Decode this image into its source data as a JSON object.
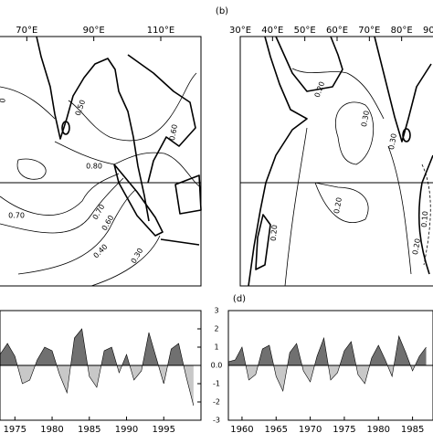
{
  "chart_data": [
    {
      "type": "map",
      "xlim": [
        62,
        122
      ],
      "xticks": [
        {
          "value": 70,
          "label": "70°E"
        },
        {
          "value": 90,
          "label": "90°E"
        },
        {
          "value": 110,
          "label": "110°E"
        }
      ],
      "contour_labels": [
        "0.50",
        "0.60",
        "0.80",
        "0.70",
        "0.70",
        "0.60",
        "0.40",
        "0.30",
        "0"
      ]
    },
    {
      "type": "map",
      "panel_label": "(b)",
      "xlim": [
        30,
        90
      ],
      "xticks": [
        {
          "value": 30,
          "label": "30°E"
        },
        {
          "value": 40,
          "label": "40°E"
        },
        {
          "value": 50,
          "label": "50°E"
        },
        {
          "value": 60,
          "label": "60°E"
        },
        {
          "value": 70,
          "label": "70°E"
        },
        {
          "value": 80,
          "label": "80°E"
        },
        {
          "value": 90,
          "label": "90°E"
        }
      ],
      "contour_labels": [
        "0.20",
        "0.30",
        "0.30",
        "0.20",
        "0.20",
        "0.20",
        "0.10"
      ]
    },
    {
      "type": "area",
      "xlim": [
        1973,
        2000
      ],
      "ylim": [
        -3,
        3
      ],
      "xticks": [
        1975,
        1980,
        1985,
        1990,
        1995
      ],
      "yticks": [
        3,
        2,
        1,
        {
          "value": 0,
          "label": "0.0"
        },
        -1,
        -2,
        -3
      ],
      "x": [
        1973,
        1974,
        1975,
        1976,
        1977,
        1978,
        1979,
        1980,
        1981,
        1982,
        1983,
        1984,
        1985,
        1986,
        1987,
        1988,
        1989,
        1990,
        1991,
        1992,
        1993,
        1994,
        1995,
        1996,
        1997,
        1998,
        1999
      ],
      "values": [
        0.6,
        1.2,
        0.5,
        -1.0,
        -0.8,
        0.3,
        1.0,
        0.8,
        -0.5,
        -1.5,
        1.5,
        2.0,
        -0.6,
        -1.2,
        0.8,
        1.0,
        -0.4,
        0.6,
        -0.8,
        -0.3,
        1.8,
        0.4,
        -1.0,
        0.9,
        1.2,
        -0.6,
        -2.2
      ],
      "colors": [
        "#707070",
        "#c8c8c8"
      ]
    },
    {
      "type": "area",
      "panel_label": "(d)",
      "xlim": [
        1958,
        1988
      ],
      "ylim": [
        -3,
        3
      ],
      "xticks": [
        1960,
        1965,
        1970,
        1975,
        1980,
        1985
      ],
      "x": [
        1958,
        1959,
        1960,
        1961,
        1962,
        1963,
        1964,
        1965,
        1966,
        1967,
        1968,
        1969,
        1970,
        1971,
        1972,
        1973,
        1974,
        1975,
        1976,
        1977,
        1978,
        1979,
        1980,
        1981,
        1982,
        1983,
        1984,
        1985,
        1986,
        1987
      ],
      "values": [
        0.2,
        0.3,
        1.0,
        -0.8,
        -0.5,
        0.9,
        1.1,
        -0.6,
        -1.4,
        0.7,
        1.2,
        -0.3,
        -0.9,
        0.5,
        1.5,
        -0.8,
        -0.4,
        0.8,
        1.3,
        -0.5,
        -1.0,
        0.4,
        1.1,
        0.3,
        -0.6,
        1.6,
        0.7,
        -0.3,
        0.5,
        1.0
      ],
      "colors": [
        "#707070",
        "#c8c8c8"
      ]
    }
  ]
}
